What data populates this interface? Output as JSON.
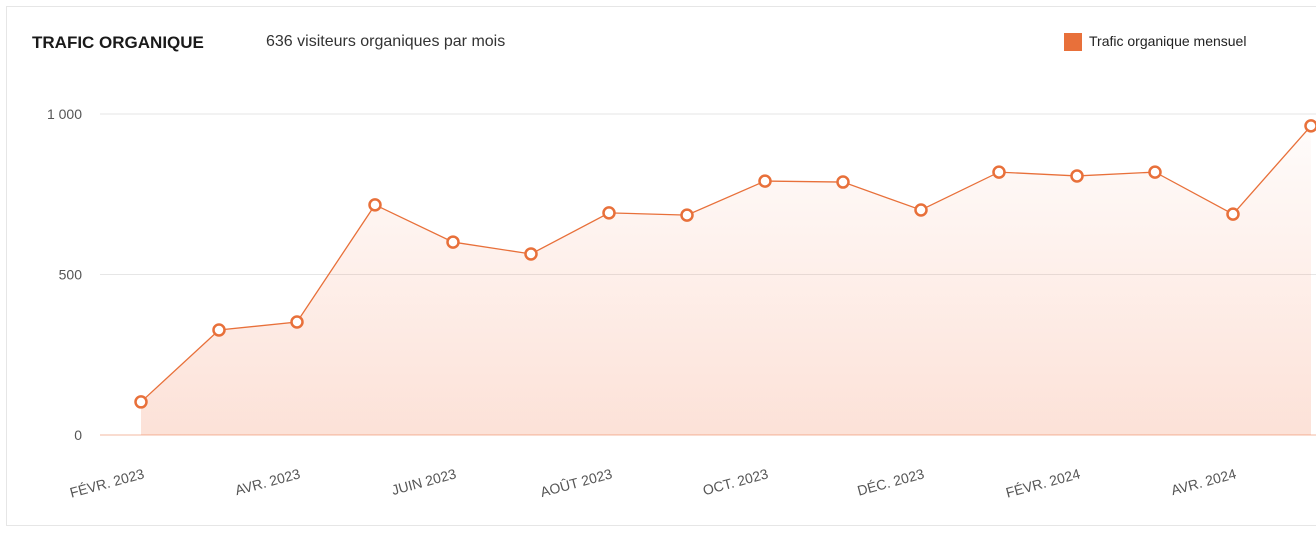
{
  "chart_data": {
    "type": "line",
    "title": "TRAFIC ORGANIQUE",
    "subtitle": "636 visiteurs organiques par mois",
    "categories": [
      "FÉVR. 2023",
      null,
      "AVR. 2023",
      null,
      "JUIN 2023",
      null,
      "AOÛT 2023",
      null,
      "OCT. 2023",
      null,
      "DÉC. 2023",
      null,
      "FÉVR. 2024",
      null,
      "AVR. 2024",
      null
    ],
    "series": [
      {
        "name": "Trafic organique mensuel",
        "color": "#e8703a",
        "values": [
          103,
          327,
          352,
          717,
          601,
          564,
          692,
          685,
          791,
          788,
          701,
          819,
          807,
          819,
          688,
          963
        ]
      }
    ],
    "ylim": [
      0,
      1000
    ],
    "yticks": [
      0,
      500,
      {
        "value": 1000,
        "label": "1 000"
      }
    ],
    "grid": true,
    "legend": "top-right"
  }
}
